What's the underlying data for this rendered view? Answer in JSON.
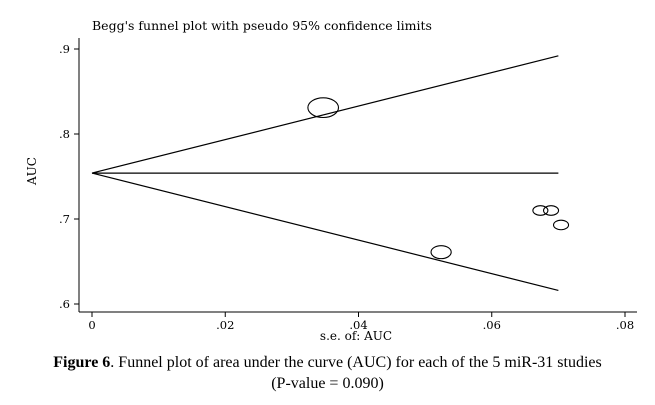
{
  "chart_data": {
    "type": "scatter",
    "title": "Begg's funnel plot with pseudo 95% confidence limits",
    "xlabel": "s.e. of: AUC",
    "ylabel": "AUC",
    "xlim": [
      0,
      0.08
    ],
    "ylim": [
      0.6,
      0.9
    ],
    "x_ticks": [
      0,
      0.02,
      0.04,
      0.06,
      0.08
    ],
    "x_tick_labels": [
      "0",
      ".02",
      ".04",
      ".06",
      ".08"
    ],
    "y_ticks": [
      0.6,
      0.7,
      0.8,
      0.9
    ],
    "y_tick_labels": [
      ".6",
      ".7",
      ".8",
      ".9"
    ],
    "pooled_estimate": 0.754,
    "lines": [
      {
        "x": [
          0,
          0.07
        ],
        "y": [
          0.754,
          0.892
        ]
      },
      {
        "x": [
          0,
          0.07
        ],
        "y": [
          0.754,
          0.754
        ]
      },
      {
        "x": [
          0,
          0.07
        ],
        "y": [
          0.754,
          0.616
        ]
      }
    ],
    "points": [
      {
        "x": 0.0347,
        "y": 0.831,
        "weight": 2.2
      },
      {
        "x": 0.0524,
        "y": 0.661,
        "weight": 1.4
      },
      {
        "x": 0.0673,
        "y": 0.71,
        "weight": 1.0
      },
      {
        "x": 0.0689,
        "y": 0.71,
        "weight": 1.0
      },
      {
        "x": 0.0704,
        "y": 0.693,
        "weight": 1.0
      }
    ]
  },
  "caption": {
    "figure_label": "Figure 6",
    "text": ". Funnel plot of area under the curve (AUC) for each of the 5 miR-31 studies",
    "line2": "(P-value = 0.090)"
  }
}
